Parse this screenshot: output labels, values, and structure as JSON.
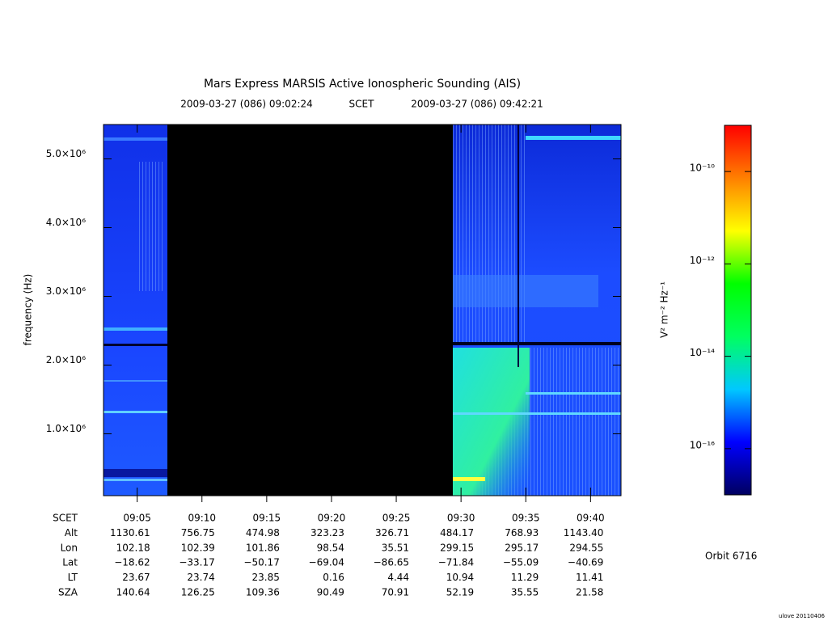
{
  "chart_data": {
    "type": "spectrogram",
    "title": "Mars Express MARSIS Active Ionospheric Sounding (AIS)",
    "subtitle": [
      "2009-03-27 (086) 09:02:24",
      "SCET",
      "2009-03-27 (086) 09:42:21"
    ],
    "ylabel": "frequency (Hz)",
    "xlabel": "SCET",
    "xlim": [
      "09:02:24",
      "09:42:21"
    ],
    "xticks": [
      "09:05",
      "09:10",
      "09:15",
      "09:20",
      "09:25",
      "09:30",
      "09:35",
      "09:40"
    ],
    "ylim": [
      100000,
      5500000
    ],
    "yticks": [
      {
        "value": 1000000,
        "label": "1.0×10⁶"
      },
      {
        "value": 2000000,
        "label": "2.0×10⁶"
      },
      {
        "value": 3000000,
        "label": "3.0×10⁶"
      },
      {
        "value": 4000000,
        "label": "4.0×10⁶"
      },
      {
        "value": 5000000,
        "label": "5.0×10⁶"
      }
    ],
    "ephemeris": [
      {
        "name": "Alt",
        "values": [
          "1130.61",
          "756.75",
          "474.98",
          "323.23",
          "326.71",
          "484.17",
          "768.93",
          "1143.40"
        ]
      },
      {
        "name": "Lon",
        "values": [
          "102.18",
          "102.39",
          "101.86",
          "98.54",
          "35.51",
          "299.15",
          "295.17",
          "294.55"
        ]
      },
      {
        "name": "Lat",
        "values": [
          "−18.62",
          "−33.17",
          "−50.17",
          "−69.04",
          "−86.65",
          "−71.84",
          "−55.09",
          "−40.69"
        ]
      },
      {
        "name": "LT",
        "values": [
          "23.67",
          "23.74",
          "23.85",
          "0.16",
          "4.44",
          "10.94",
          "11.29",
          "11.41"
        ]
      },
      {
        "name": "SZA",
        "values": [
          "140.64",
          "126.25",
          "109.36",
          "90.49",
          "70.91",
          "52.19",
          "35.55",
          "21.58"
        ]
      }
    ],
    "colorbar": {
      "label": "V² m⁻² Hz⁻¹",
      "log": true,
      "zlim": [
        1e-17,
        1e-09
      ],
      "ticks": [
        {
          "value": 1e-10,
          "label": "10⁻¹⁰"
        },
        {
          "value": 1e-12,
          "label": "10⁻¹²"
        },
        {
          "value": 1e-14,
          "label": "10⁻¹⁴"
        },
        {
          "value": 1e-16,
          "label": "10⁻¹⁶"
        }
      ],
      "colors": [
        "#000060",
        "#0000ff",
        "#00c8ff",
        "#00ff60",
        "#00ff00",
        "#ffff00",
        "#ff8000",
        "#ff0000"
      ]
    },
    "orbit": "Orbit 6716",
    "footer": "ulove 20110406"
  }
}
